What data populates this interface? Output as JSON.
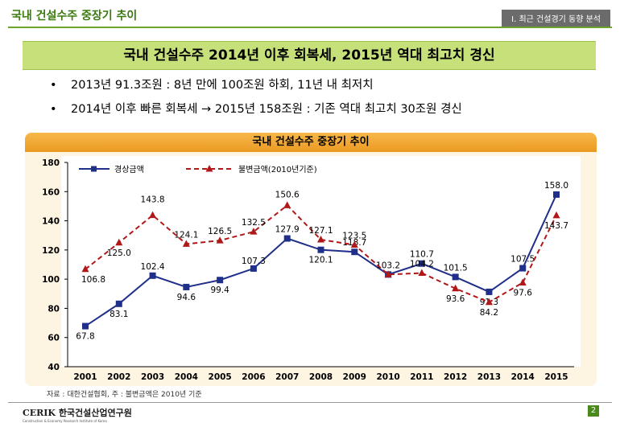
{
  "header": {
    "title": "국내 건설수주 중장기 추이",
    "section": "I. 최근 건설경기 동향 분석"
  },
  "banner": {
    "text": "국내 건설수주 2014년 이후 회복세, 2015년 역대 최고치 경신"
  },
  "bullets": [
    {
      "symbol": "•",
      "text": "2013년 91.3조원 : 8년 만에 100조원 하회, 11년 내 최저치"
    },
    {
      "symbol": "•",
      "text": "2014년 이후 빠른 회복세 → 2015년  158조원 : 기존 역대 최고치 30조원 경신"
    }
  ],
  "chart_data": {
    "type": "line",
    "title": "국내 건설수주 중장기 추이",
    "categories": [
      "2001",
      "2002",
      "2003",
      "2004",
      "2005",
      "2006",
      "2007",
      "2008",
      "2009",
      "2010",
      "2011",
      "2012",
      "2013",
      "2014",
      "2015"
    ],
    "series": [
      {
        "name": "경상금액",
        "color": "#1f2f8a",
        "marker": "square",
        "line": "solid",
        "values": [
          67.8,
          83.1,
          102.4,
          94.6,
          99.4,
          107.3,
          127.9,
          120.1,
          118.7,
          103.2,
          110.7,
          101.5,
          91.3,
          107.5,
          158.0
        ],
        "labels": [
          "67.8",
          "83.1",
          "102.4",
          "94.6",
          "99.4",
          "107.3",
          "127.9",
          "120.1",
          "118.7",
          "103.2",
          "110.7",
          "101.5",
          "91.3",
          "107.5",
          "158.0"
        ]
      },
      {
        "name": "불변금액(2010년기준)",
        "color": "#b01818",
        "marker": "triangle",
        "line": "dashed",
        "values": [
          106.8,
          125.0,
          143.8,
          124.1,
          126.5,
          132.5,
          150.6,
          127.1,
          123.5,
          103.2,
          104.2,
          93.6,
          84.2,
          97.6,
          143.7
        ],
        "labels": [
          "106.8",
          "125.0",
          "143.8",
          "124.1",
          "126.5",
          "132.5",
          "150.6",
          "127.1",
          "123.5",
          "",
          "104.2",
          "93.6",
          "84.2",
          "97.6",
          "143.7"
        ]
      }
    ],
    "ylim": [
      40,
      180
    ],
    "yticks": [
      40,
      60,
      80,
      100,
      120,
      140,
      160,
      180
    ],
    "grid": false,
    "legend": "top-left"
  },
  "source": "자료 : 대한건설협회,  주 : 불변금액은 2010년 기준",
  "footer": {
    "logo_text": "CERIK 한국건설산업연구원",
    "logo_sub": "Construction & Economy Research Institute of Korea",
    "page": "2"
  }
}
